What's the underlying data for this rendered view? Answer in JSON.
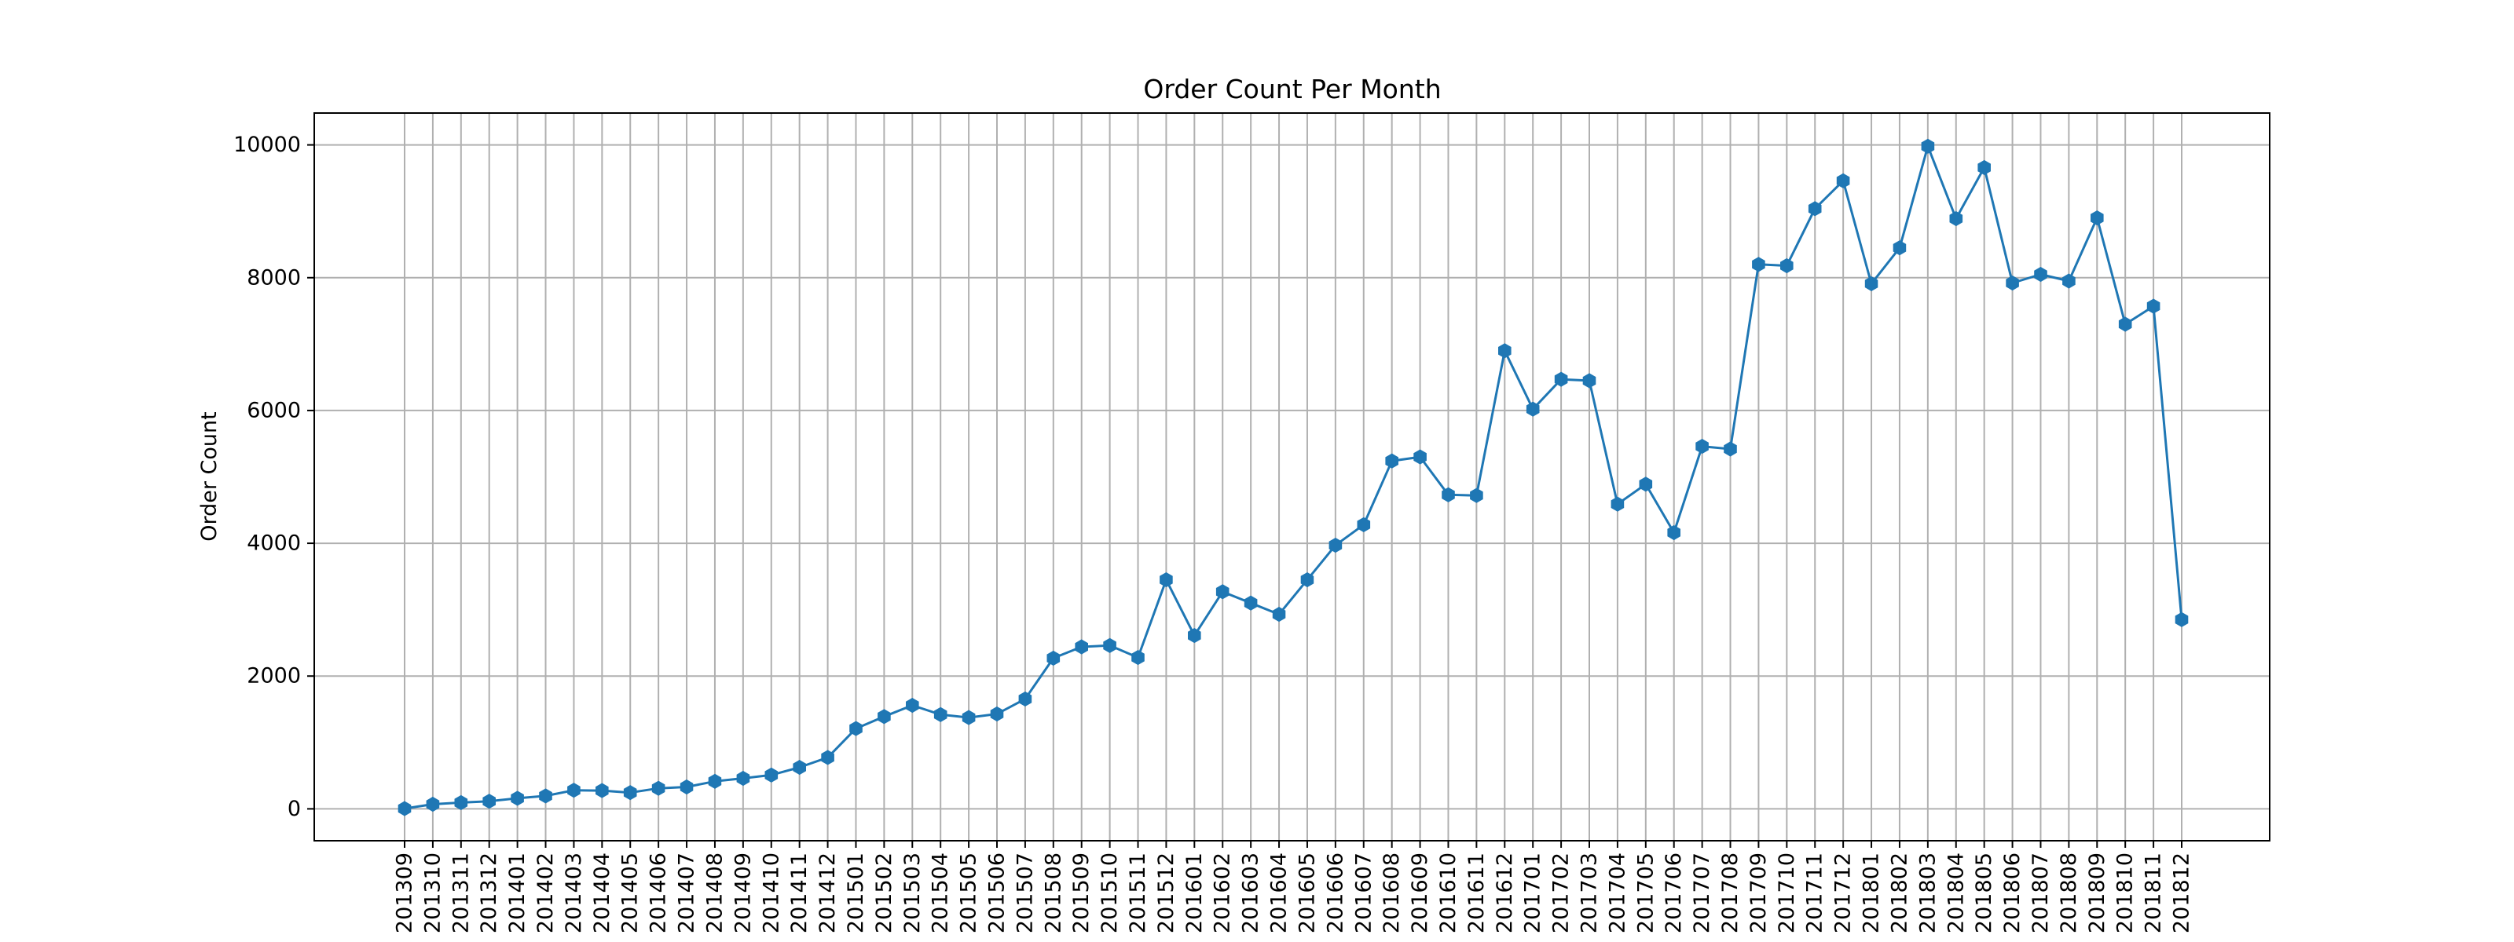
{
  "chart_data": {
    "type": "line",
    "title": "Order Count Per Month",
    "xlabel": "",
    "ylabel": "Order Count",
    "x": [
      "201309",
      "201310",
      "201311",
      "201312",
      "201401",
      "201402",
      "201403",
      "201404",
      "201405",
      "201406",
      "201407",
      "201408",
      "201409",
      "201410",
      "201411",
      "201412",
      "201501",
      "201502",
      "201503",
      "201504",
      "201505",
      "201506",
      "201507",
      "201508",
      "201509",
      "201510",
      "201511",
      "201512",
      "201601",
      "201602",
      "201603",
      "201604",
      "201605",
      "201606",
      "201607",
      "201608",
      "201609",
      "201610",
      "201611",
      "201612",
      "201701",
      "201702",
      "201703",
      "201704",
      "201705",
      "201706",
      "201707",
      "201708",
      "201709",
      "201710",
      "201711",
      "201712",
      "201801",
      "201802",
      "201803",
      "201804",
      "201805",
      "201806",
      "201807",
      "201808",
      "201809",
      "201810",
      "201811",
      "201812"
    ],
    "series": [
      {
        "values": [
          5,
          70,
          95,
          115,
          160,
          195,
          280,
          275,
          245,
          310,
          330,
          415,
          460,
          510,
          625,
          775,
          1210,
          1390,
          1560,
          1420,
          1375,
          1430,
          1655,
          2270,
          2440,
          2460,
          2280,
          3450,
          2610,
          3270,
          3100,
          2930,
          3450,
          3970,
          4280,
          5240,
          5300,
          4730,
          4720,
          6900,
          6020,
          6470,
          6450,
          4590,
          4890,
          4160,
          5460,
          5420,
          8200,
          8180,
          9040,
          9460,
          7910,
          8450,
          9980,
          8890,
          9660,
          7920,
          8050,
          7950,
          8900,
          7300,
          7570,
          2850
        ]
      }
    ],
    "yticks": [
      0,
      2000,
      4000,
      6000,
      8000,
      10000
    ],
    "ylim": [
      -480,
      10480
    ],
    "grid": true,
    "color": "#1f77b4",
    "marker": "hexagon"
  }
}
